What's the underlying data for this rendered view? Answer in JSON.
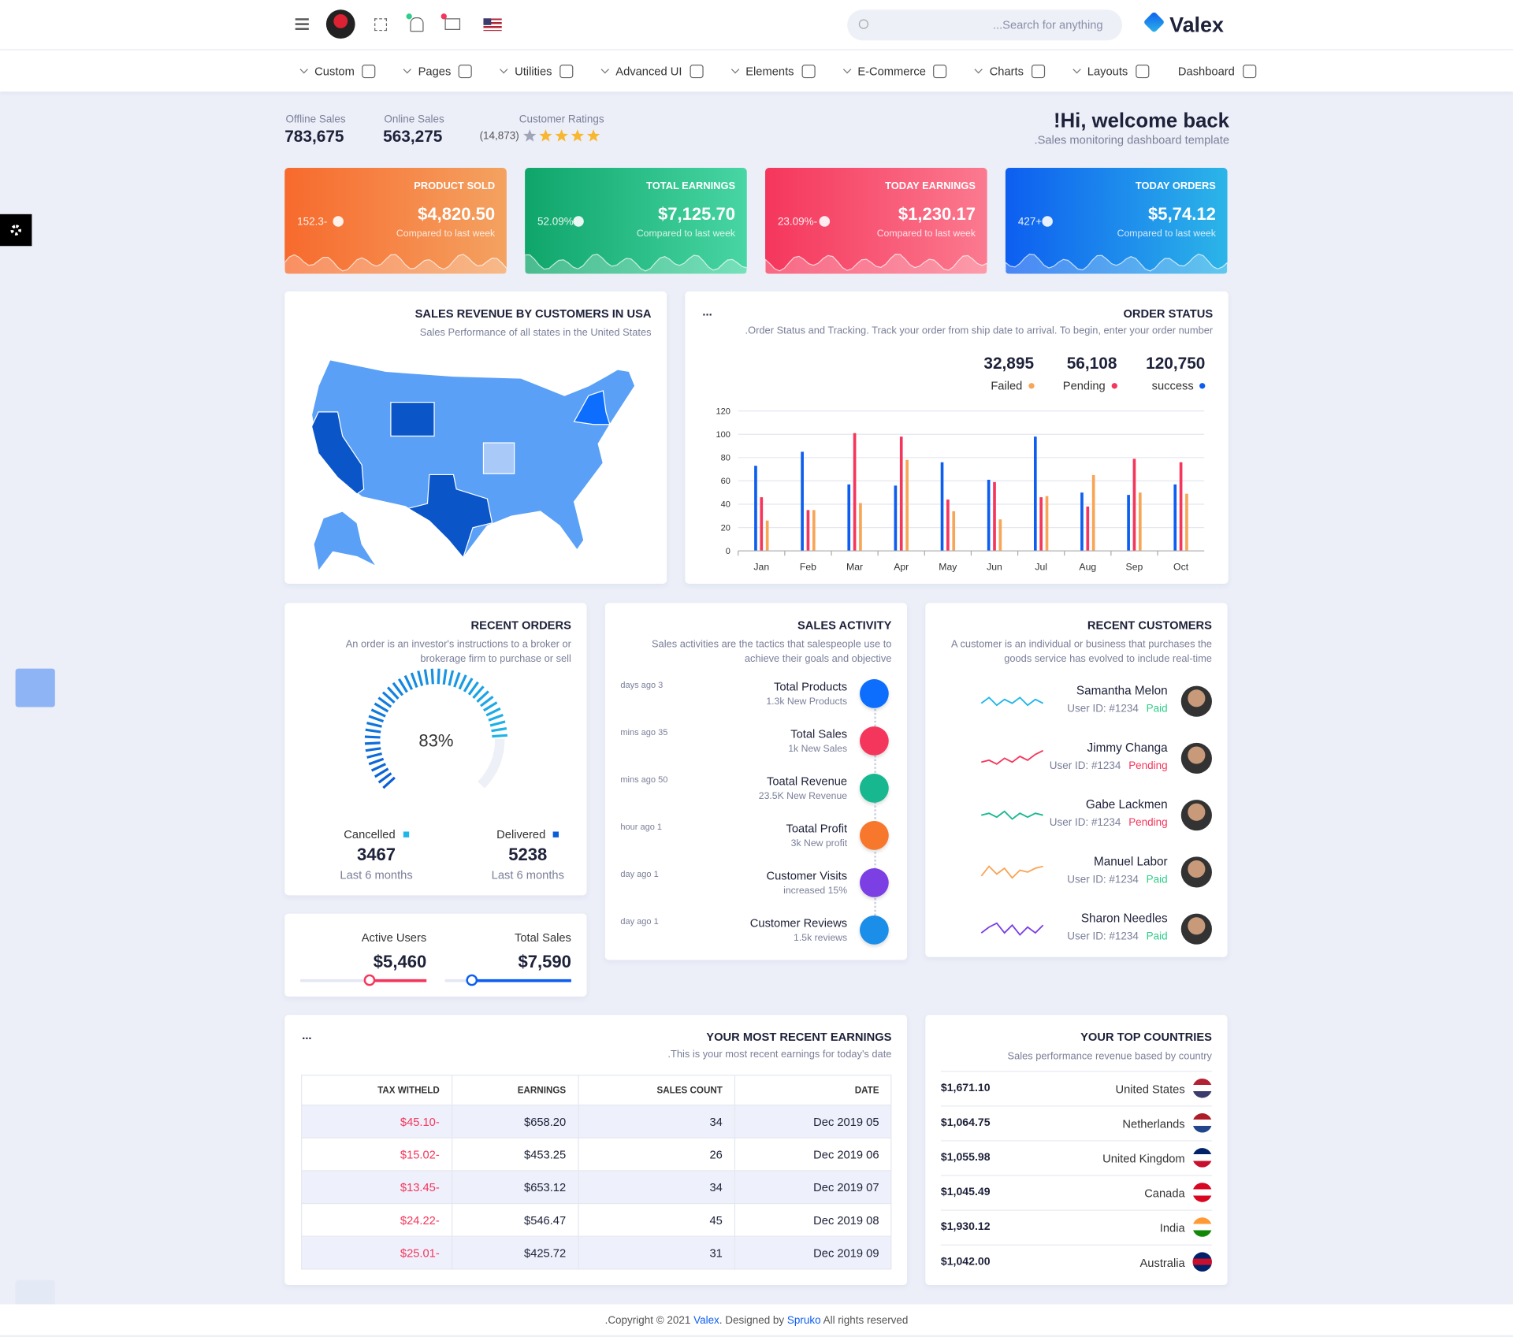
{
  "header": {
    "logo": "Valex",
    "search_placeholder": "...Search for anything",
    "nav": [
      "Custom",
      "Pages",
      "Utilities",
      "Advanced UI",
      "Elements",
      "E-Commerce",
      "Charts",
      "Layouts",
      "Dashboard"
    ]
  },
  "summary": {
    "stats": [
      {
        "label": "Offline Sales",
        "value": "783,675"
      },
      {
        "label": "Online Sales",
        "value": "563,275"
      }
    ],
    "ratings_label": "Customer Ratings",
    "ratings_count": "(14,873)",
    "rating": 4,
    "rating_max": 5,
    "welcome": "!Hi, welcome back",
    "welcome_sub": ".Sales monitoring dashboard template"
  },
  "cards": [
    {
      "title": "PRODUCT SOLD",
      "value": "$4,820.50",
      "change": "152.3-",
      "note": "Compared to last week",
      "colors": [
        "#f76a2d",
        "#f4a261"
      ]
    },
    {
      "title": "TOTAL EARNINGS",
      "value": "$7,125.70",
      "change": "52.09%",
      "note": "Compared to last week",
      "colors": [
        "#0ea56a",
        "#48d6a4"
      ]
    },
    {
      "title": "TODAY EARNINGS",
      "value": "$1,230.17",
      "change": "23.09%-",
      "note": "Compared to last week",
      "colors": [
        "#f5365c",
        "#fb7a8f"
      ]
    },
    {
      "title": "TODAY ORDERS",
      "value": "$5,74.12",
      "change": "427+",
      "note": "Compared to last week",
      "colors": [
        "#0d5ef0",
        "#2cb5e8"
      ]
    }
  ],
  "map": {
    "title": "SALES REVENUE BY CUSTOMERS IN USA",
    "subtitle": "Sales Performance of all states in the United States"
  },
  "chart_data": {
    "type": "bar",
    "title": "ORDER STATUS",
    "menu": "...",
    "subtitle": ".Order Status and Tracking. Track your order from ship date to arrival. To begin, enter your order number",
    "categories": [
      "Jan",
      "Feb",
      "Mar",
      "Apr",
      "May",
      "Jun",
      "Jul",
      "Aug",
      "Sep",
      "Oct"
    ],
    "series": [
      {
        "name": "success",
        "total": "120,750",
        "color": "#0d5ef0",
        "values": [
          73,
          85,
          57,
          56,
          76,
          61,
          98,
          50,
          48,
          57
        ]
      },
      {
        "name": "Pending",
        "total": "56,108",
        "color": "#f5365c",
        "values": [
          46,
          35,
          101,
          98,
          44,
          59,
          46,
          38,
          79,
          76
        ]
      },
      {
        "name": "Failed",
        "total": "32,895",
        "color": "#f7a556",
        "values": [
          26,
          35,
          41,
          78,
          34,
          27,
          47,
          65,
          50,
          49
        ]
      }
    ],
    "ylim": [
      0,
      120
    ],
    "yticks": [
      0,
      20,
      40,
      60,
      80,
      100,
      120
    ]
  },
  "recent_orders": {
    "title": "RECENT ORDERS",
    "description": "An order is an investor's instructions to a broker or brokerage firm to purchase or sell",
    "gauge": 83,
    "gauge_label": "83%",
    "items": [
      {
        "label": "Cancelled",
        "value": "3467",
        "note": "Last 6 months",
        "color": "#1fb6e8"
      },
      {
        "label": "Delivered",
        "value": "5238",
        "note": "Last 6 months",
        "color": "#0a5fd8"
      }
    ]
  },
  "sliders": [
    {
      "label": "Active Users",
      "value": "$5,460",
      "color": "#f5365c",
      "position": 55
    },
    {
      "label": "Total Sales",
      "value": "$7,590",
      "color": "#0d5ef0",
      "position": 21
    }
  ],
  "sales_activity": {
    "title": "SALES ACTIVITY",
    "description": "Sales activities are the tactics that salespeople use to achieve their goals and objective",
    "items": [
      {
        "time": "days ago 3",
        "title": "Total Products",
        "sub": "1.3k New Products",
        "color": "#0d6efd"
      },
      {
        "time": "mins ago 35",
        "title": "Total Sales",
        "sub": "1k New Sales",
        "color": "#f5365c"
      },
      {
        "time": "mins ago 50",
        "title": "Toatal Revenue",
        "sub": "23.5K New Revenue",
        "color": "#17b890"
      },
      {
        "time": "hour ago 1",
        "title": "Toatal Profit",
        "sub": "3k New profit",
        "color": "#f7772d"
      },
      {
        "time": "day ago 1",
        "title": "Customer Visits",
        "sub": "increased 15%",
        "color": "#7b3fe4"
      },
      {
        "time": "day ago 1",
        "title": "Customer Reviews",
        "sub": "1.5k reviews",
        "color": "#1a8ee8"
      }
    ]
  },
  "recent_customers": {
    "title": "RECENT CUSTOMERS",
    "description": "A customer is an individual or business that purchases the goods service has evolved to include real-time",
    "items": [
      {
        "name": "Samantha Melon",
        "id": "User ID: #1234",
        "status": "Paid",
        "color": "#1fb6e8",
        "trend": [
          4,
          7,
          3,
          6,
          4,
          7,
          3,
          6,
          4
        ]
      },
      {
        "name": "Jimmy Changa",
        "id": "User ID: #1234",
        "status": "Pending",
        "color": "#f5365c",
        "trend": [
          3,
          4,
          2,
          5,
          3,
          6,
          4,
          7,
          9
        ]
      },
      {
        "name": "Gabe Lackmen",
        "id": "User ID: #1234",
        "status": "Pending",
        "color": "#17b890",
        "trend": [
          5,
          6,
          4,
          7,
          3,
          6,
          4,
          6,
          5
        ]
      },
      {
        "name": "Manuel Labor",
        "id": "User ID: #1234",
        "status": "Paid",
        "color": "#f7a556",
        "trend": [
          3,
          8,
          4,
          7,
          2,
          6,
          5,
          7,
          8
        ]
      },
      {
        "name": "Sharon Needles",
        "id": "User ID: #1234",
        "status": "Paid",
        "color": "#7b3fe4",
        "trend": [
          3,
          6,
          8,
          3,
          7,
          2,
          6,
          3,
          7
        ]
      }
    ]
  },
  "earnings": {
    "title": "YOUR MOST RECENT EARNINGS",
    "menu": "...",
    "subtitle": ".This is your most recent earnings for today's date",
    "columns": [
      "TAX WITHELD",
      "EARNINGS",
      "SALES COUNT",
      "DATE"
    ],
    "rows": [
      [
        "$45.10-",
        "$658.20",
        "34",
        "Dec 2019 05"
      ],
      [
        "$15.02-",
        "$453.25",
        "26",
        "Dec 2019 06"
      ],
      [
        "$13.45-",
        "$653.12",
        "34",
        "Dec 2019 07"
      ],
      [
        "$24.22-",
        "$546.47",
        "45",
        "Dec 2019 08"
      ],
      [
        "$25.01-",
        "$425.72",
        "31",
        "Dec 2019 09"
      ]
    ]
  },
  "countries": {
    "title": "YOUR TOP COUNTRIES",
    "subtitle": "Sales performance revenue based by country",
    "rows": [
      {
        "amount": "$1,671.10",
        "name": "United States",
        "flag": [
          "#b22234",
          "#ffffff",
          "#3c3b6e"
        ]
      },
      {
        "amount": "$1,064.75",
        "name": "Netherlands",
        "flag": [
          "#ae1c28",
          "#ffffff",
          "#21468b"
        ]
      },
      {
        "amount": "$1,055.98",
        "name": "United Kingdom",
        "flag": [
          "#012169",
          "#ffffff",
          "#c8102e"
        ]
      },
      {
        "amount": "$1,045.49",
        "name": "Canada",
        "flag": [
          "#d80621",
          "#ffffff",
          "#d80621"
        ]
      },
      {
        "amount": "$1,930.12",
        "name": "India",
        "flag": [
          "#ff9933",
          "#ffffff",
          "#138808"
        ]
      },
      {
        "amount": "$1,042.00",
        "name": "Australia",
        "flag": [
          "#012169",
          "#c8102e",
          "#012169"
        ]
      }
    ]
  },
  "footer": {
    "pre": ".Copyright © 2021 ",
    "brand": "Valex",
    "mid": ". Designed by ",
    "designer": "Spruko",
    "post": " All rights reserved"
  }
}
